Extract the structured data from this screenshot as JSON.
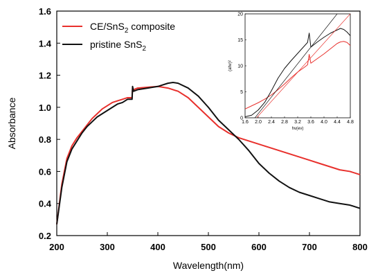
{
  "chart_data": [
    {
      "type": "line",
      "xlabel": "Wavelength(nm)",
      "ylabel": "Absorbance",
      "xlim": [
        200,
        800
      ],
      "ylim": [
        0.2,
        1.6
      ],
      "x_ticks": [
        "200",
        "300",
        "400",
        "500",
        "600",
        "700",
        "800"
      ],
      "y_ticks": [
        "0.2",
        "0.4",
        "0.6",
        "0.8",
        "1.0",
        "1.2",
        "1.4",
        "1.6"
      ],
      "legend_position": "top-left",
      "series": [
        {
          "name": "CE/SnS2 composite",
          "legend_main": "CE/SnS",
          "legend_sub": "2",
          "legend_tail": " composite",
          "color": "#e8302c",
          "x": [
            200,
            210,
            220,
            230,
            240,
            250,
            260,
            270,
            280,
            290,
            300,
            310,
            320,
            330,
            340,
            349,
            350,
            352,
            360,
            380,
            400,
            420,
            440,
            460,
            480,
            500,
            520,
            540,
            560,
            580,
            600,
            620,
            640,
            660,
            680,
            700,
            720,
            740,
            760,
            780,
            800
          ],
          "y": [
            0.27,
            0.52,
            0.68,
            0.76,
            0.81,
            0.85,
            0.89,
            0.93,
            0.96,
            0.99,
            1.01,
            1.03,
            1.04,
            1.05,
            1.06,
            1.06,
            1.12,
            1.11,
            1.12,
            1.125,
            1.13,
            1.12,
            1.1,
            1.06,
            1.0,
            0.94,
            0.88,
            0.84,
            0.81,
            0.79,
            0.77,
            0.75,
            0.73,
            0.71,
            0.69,
            0.67,
            0.65,
            0.63,
            0.61,
            0.6,
            0.58
          ]
        },
        {
          "name": "pristine SnS2",
          "legend_main": "pristine SnS",
          "legend_sub": "2",
          "legend_tail": "",
          "color": "#111111",
          "x": [
            200,
            210,
            220,
            230,
            240,
            250,
            260,
            270,
            280,
            290,
            300,
            310,
            320,
            330,
            340,
            349,
            350,
            352,
            360,
            380,
            400,
            420,
            430,
            440,
            460,
            480,
            500,
            520,
            540,
            560,
            580,
            600,
            620,
            640,
            660,
            680,
            700,
            720,
            740,
            760,
            780,
            800
          ],
          "y": [
            0.27,
            0.5,
            0.66,
            0.74,
            0.79,
            0.84,
            0.88,
            0.91,
            0.94,
            0.96,
            0.98,
            1.0,
            1.02,
            1.03,
            1.05,
            1.05,
            1.13,
            1.1,
            1.11,
            1.12,
            1.13,
            1.15,
            1.155,
            1.15,
            1.12,
            1.07,
            1.0,
            0.92,
            0.86,
            0.8,
            0.73,
            0.65,
            0.59,
            0.54,
            0.5,
            0.47,
            0.45,
            0.43,
            0.41,
            0.4,
            0.39,
            0.37
          ]
        }
      ]
    },
    {
      "type": "line",
      "xlabel": "hv(ev)",
      "ylabel": "(ahv)²",
      "xlim": [
        1.6,
        4.8
      ],
      "ylim": [
        0,
        20
      ],
      "x_ticks": [
        "1.6",
        "2.0",
        "2.4",
        "2.8",
        "3.2",
        "3.6",
        "4.0",
        "4.4",
        "4.8"
      ],
      "y_ticks": [
        "0",
        "5",
        "10",
        "15",
        "20"
      ],
      "series": [
        {
          "color": "#e8302c",
          "x": [
            1.6,
            1.8,
            2.0,
            2.2,
            2.4,
            2.6,
            2.8,
            3.0,
            3.2,
            3.4,
            3.5,
            3.55,
            3.6,
            3.8,
            4.0,
            4.2,
            4.4,
            4.5,
            4.6,
            4.7,
            4.8
          ],
          "y": [
            1.7,
            2.3,
            2.9,
            3.6,
            4.4,
            5.4,
            6.5,
            7.7,
            8.8,
            9.7,
            10.2,
            12.2,
            10.5,
            11.4,
            12.3,
            13.3,
            14.3,
            14.6,
            14.7,
            14.5,
            13.9
          ]
        },
        {
          "color": "#111111",
          "x": [
            1.6,
            1.8,
            2.0,
            2.2,
            2.4,
            2.6,
            2.8,
            3.0,
            3.2,
            3.4,
            3.5,
            3.55,
            3.6,
            3.8,
            4.0,
            4.2,
            4.4,
            4.5,
            4.6,
            4.7,
            4.8
          ],
          "y": [
            0.2,
            0.5,
            1.5,
            3.0,
            5.2,
            7.6,
            9.5,
            11.0,
            12.4,
            13.8,
            14.5,
            16.3,
            13.6,
            14.6,
            15.5,
            16.3,
            16.9,
            17.2,
            17.0,
            16.5,
            15.8
          ]
        },
        {
          "color": "#e8302c",
          "style": "tangent",
          "x": [
            1.95,
            4.8
          ],
          "y": [
            0.0,
            20.0
          ]
        },
        {
          "color": "#111111",
          "style": "tangent",
          "x": [
            1.9,
            4.4
          ],
          "y": [
            0.0,
            20.0
          ]
        }
      ]
    }
  ]
}
